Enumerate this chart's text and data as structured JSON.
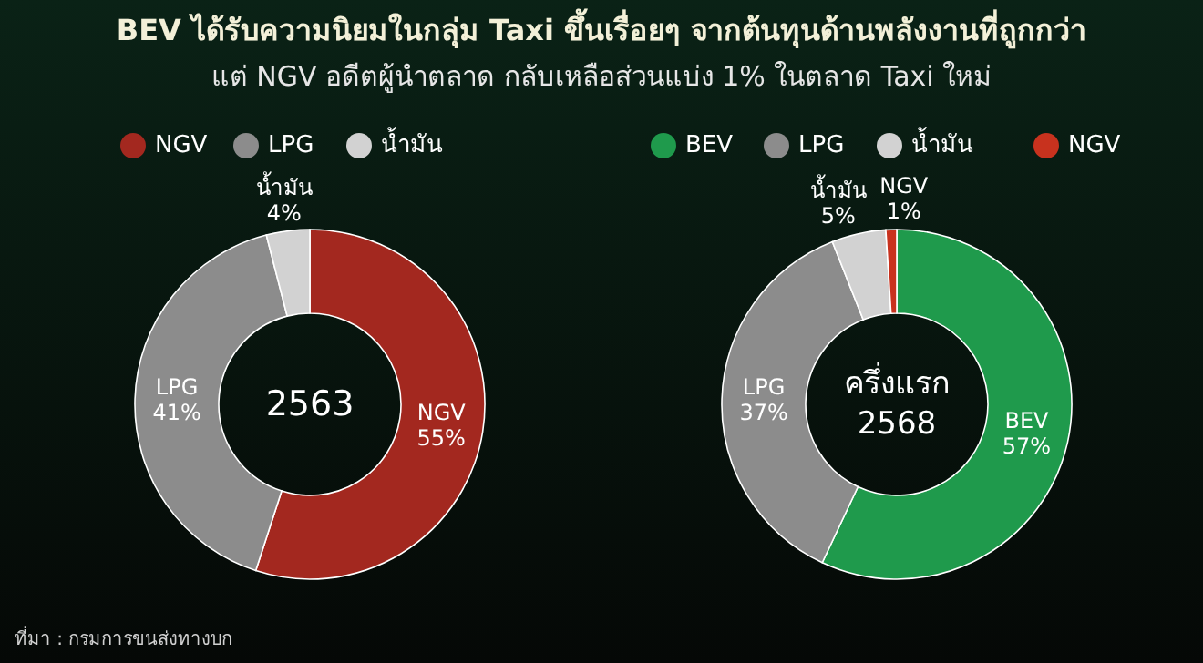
{
  "chart_data": [
    {
      "type": "donut",
      "title": "BEV ได้รับความนิยมในกลุ่ม Taxi ขึ้นเรื่อยๆ จากต้นทุนด้านพลังงานที่ถูกกว่า",
      "subtitle": "แต่ NGV อดีตผู้นำตลาด กลับเหลือส่วนแบ่ง 1% ในตลาด Taxi ใหม่",
      "categories": [
        "NGV",
        "LPG",
        "น้ำมัน"
      ],
      "values": [
        55,
        41,
        4
      ],
      "value_labels": [
        "55%",
        "41%",
        "4%"
      ],
      "colors": [
        "#a3281f",
        "#8c8c8c",
        "#d2d2d2"
      ],
      "legend": "top",
      "annotations": [
        "2563",
        "ที่มา : กรมการขนส่งทางบก"
      ]
    },
    {
      "type": "donut",
      "categories": [
        "BEV",
        "LPG",
        "น้ำมัน",
        "NGV"
      ],
      "values": [
        57,
        37,
        5,
        1
      ],
      "value_labels": [
        "57%",
        "37%",
        "5%",
        "1%"
      ],
      "colors": [
        "#1f9a4c",
        "#8c8c8c",
        "#d2d2d2",
        "#c8321e"
      ],
      "legend": "top",
      "annotations": [
        "ครึ่งแรก\n2568"
      ]
    }
  ]
}
